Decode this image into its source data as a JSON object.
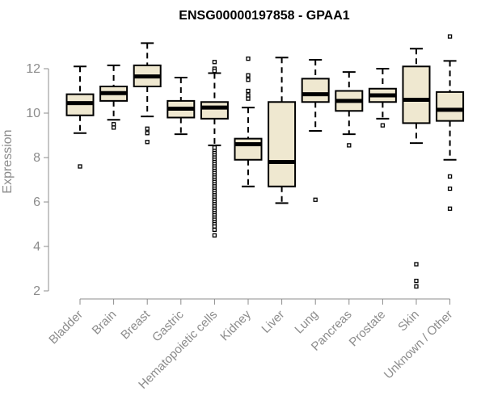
{
  "chart_data": {
    "type": "boxplot",
    "title": "ENSG00000197858 - GPAA1",
    "ylabel": "Expression",
    "xlabel": "",
    "ylim": [
      2,
      13.5
    ],
    "yticks": [
      2,
      4,
      6,
      8,
      10,
      12
    ],
    "grid": false,
    "colors": {
      "box_fill": "#efe8d0",
      "stroke": "#000000",
      "axis": "#8c8c8c"
    },
    "categories": [
      "Bladder",
      "Brain",
      "Breast",
      "Gastric",
      "Hematopoietic cells",
      "Kidney",
      "Liver",
      "Lung",
      "Pancreas",
      "Prostate",
      "Skin",
      "Unknown / Other"
    ],
    "boxes": [
      {
        "category": "Bladder",
        "whisker_low": 9.1,
        "q1": 9.9,
        "median": 10.45,
        "q3": 10.85,
        "whisker_high": 12.1,
        "outliers": [
          7.6
        ]
      },
      {
        "category": "Brain",
        "whisker_low": 9.7,
        "q1": 10.55,
        "median": 10.9,
        "q3": 11.2,
        "whisker_high": 12.15,
        "outliers": [
          9.35,
          9.5
        ]
      },
      {
        "category": "Breast",
        "whisker_low": 9.85,
        "q1": 11.2,
        "median": 11.65,
        "q3": 12.15,
        "whisker_high": 13.15,
        "outliers": [
          9.3,
          9.1,
          8.7
        ]
      },
      {
        "category": "Gastric",
        "whisker_low": 9.05,
        "q1": 9.8,
        "median": 10.2,
        "q3": 10.55,
        "whisker_high": 11.6,
        "outliers": []
      },
      {
        "category": "Hematopoietic cells",
        "whisker_low": 8.55,
        "q1": 9.75,
        "median": 10.25,
        "q3": 10.5,
        "whisker_high": 11.8,
        "outliers": [
          12.3,
          12.0,
          11.9,
          8.45,
          8.3,
          8.2,
          8.1,
          8.0,
          7.9,
          7.8,
          7.7,
          7.6,
          7.5,
          7.4,
          7.3,
          7.2,
          7.1,
          7.0,
          6.9,
          6.8,
          6.7,
          6.6,
          6.5,
          6.4,
          6.3,
          6.2,
          6.1,
          6.0,
          5.9,
          5.8,
          5.7,
          5.6,
          5.5,
          5.4,
          5.3,
          5.2,
          5.1,
          5.0,
          4.9,
          4.75,
          4.5
        ]
      },
      {
        "category": "Kidney",
        "whisker_low": 6.7,
        "q1": 7.9,
        "median": 8.6,
        "q3": 8.85,
        "whisker_high": 10.25,
        "outliers": [
          12.45,
          11.7,
          11.5,
          11.0,
          10.8,
          10.65
        ]
      },
      {
        "category": "Liver",
        "whisker_low": 5.95,
        "q1": 6.7,
        "median": 7.8,
        "q3": 10.5,
        "whisker_high": 12.5,
        "outliers": []
      },
      {
        "category": "Lung",
        "whisker_low": 9.2,
        "q1": 10.5,
        "median": 10.85,
        "q3": 11.55,
        "whisker_high": 12.4,
        "outliers": [
          6.1
        ]
      },
      {
        "category": "Pancreas",
        "whisker_low": 9.05,
        "q1": 10.1,
        "median": 10.55,
        "q3": 11.0,
        "whisker_high": 11.85,
        "outliers": [
          8.55
        ]
      },
      {
        "category": "Prostate",
        "whisker_low": 9.75,
        "q1": 10.5,
        "median": 10.8,
        "q3": 11.1,
        "whisker_high": 12.0,
        "outliers": [
          9.45
        ]
      },
      {
        "category": "Skin",
        "whisker_low": 8.65,
        "q1": 9.55,
        "median": 10.6,
        "q3": 12.1,
        "whisker_high": 12.9,
        "outliers": [
          3.2,
          2.45,
          2.2
        ]
      },
      {
        "category": "Unknown / Other",
        "whisker_low": 7.9,
        "q1": 9.65,
        "median": 10.15,
        "q3": 10.95,
        "whisker_high": 12.35,
        "outliers": [
          13.45,
          7.15,
          6.6,
          5.7
        ]
      }
    ]
  }
}
